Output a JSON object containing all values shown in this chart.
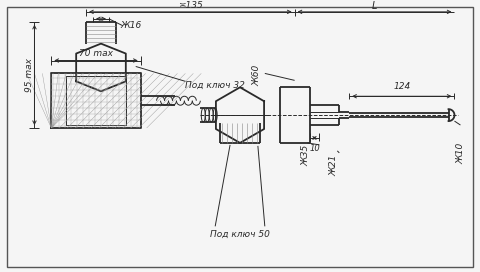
{
  "bg_color": "#f5f5f5",
  "line_color": "#2a2a2a",
  "dim_color": "#2a2a2a",
  "hatch_color": "#555555",
  "annotations": {
    "70max": "70 max",
    "95max": "95 max",
    "pod_klyuch_50": "Под ключ 50",
    "pod_klyuch_32": "Под ключ 32",
    "d16": "Ж16",
    "approx135": "≍135",
    "10": "10",
    "d35": "Ж35",
    "d21": "Ж21",
    "d10": "Ж10",
    "d60": "Ж60",
    "124": "124",
    "L": "L"
  }
}
